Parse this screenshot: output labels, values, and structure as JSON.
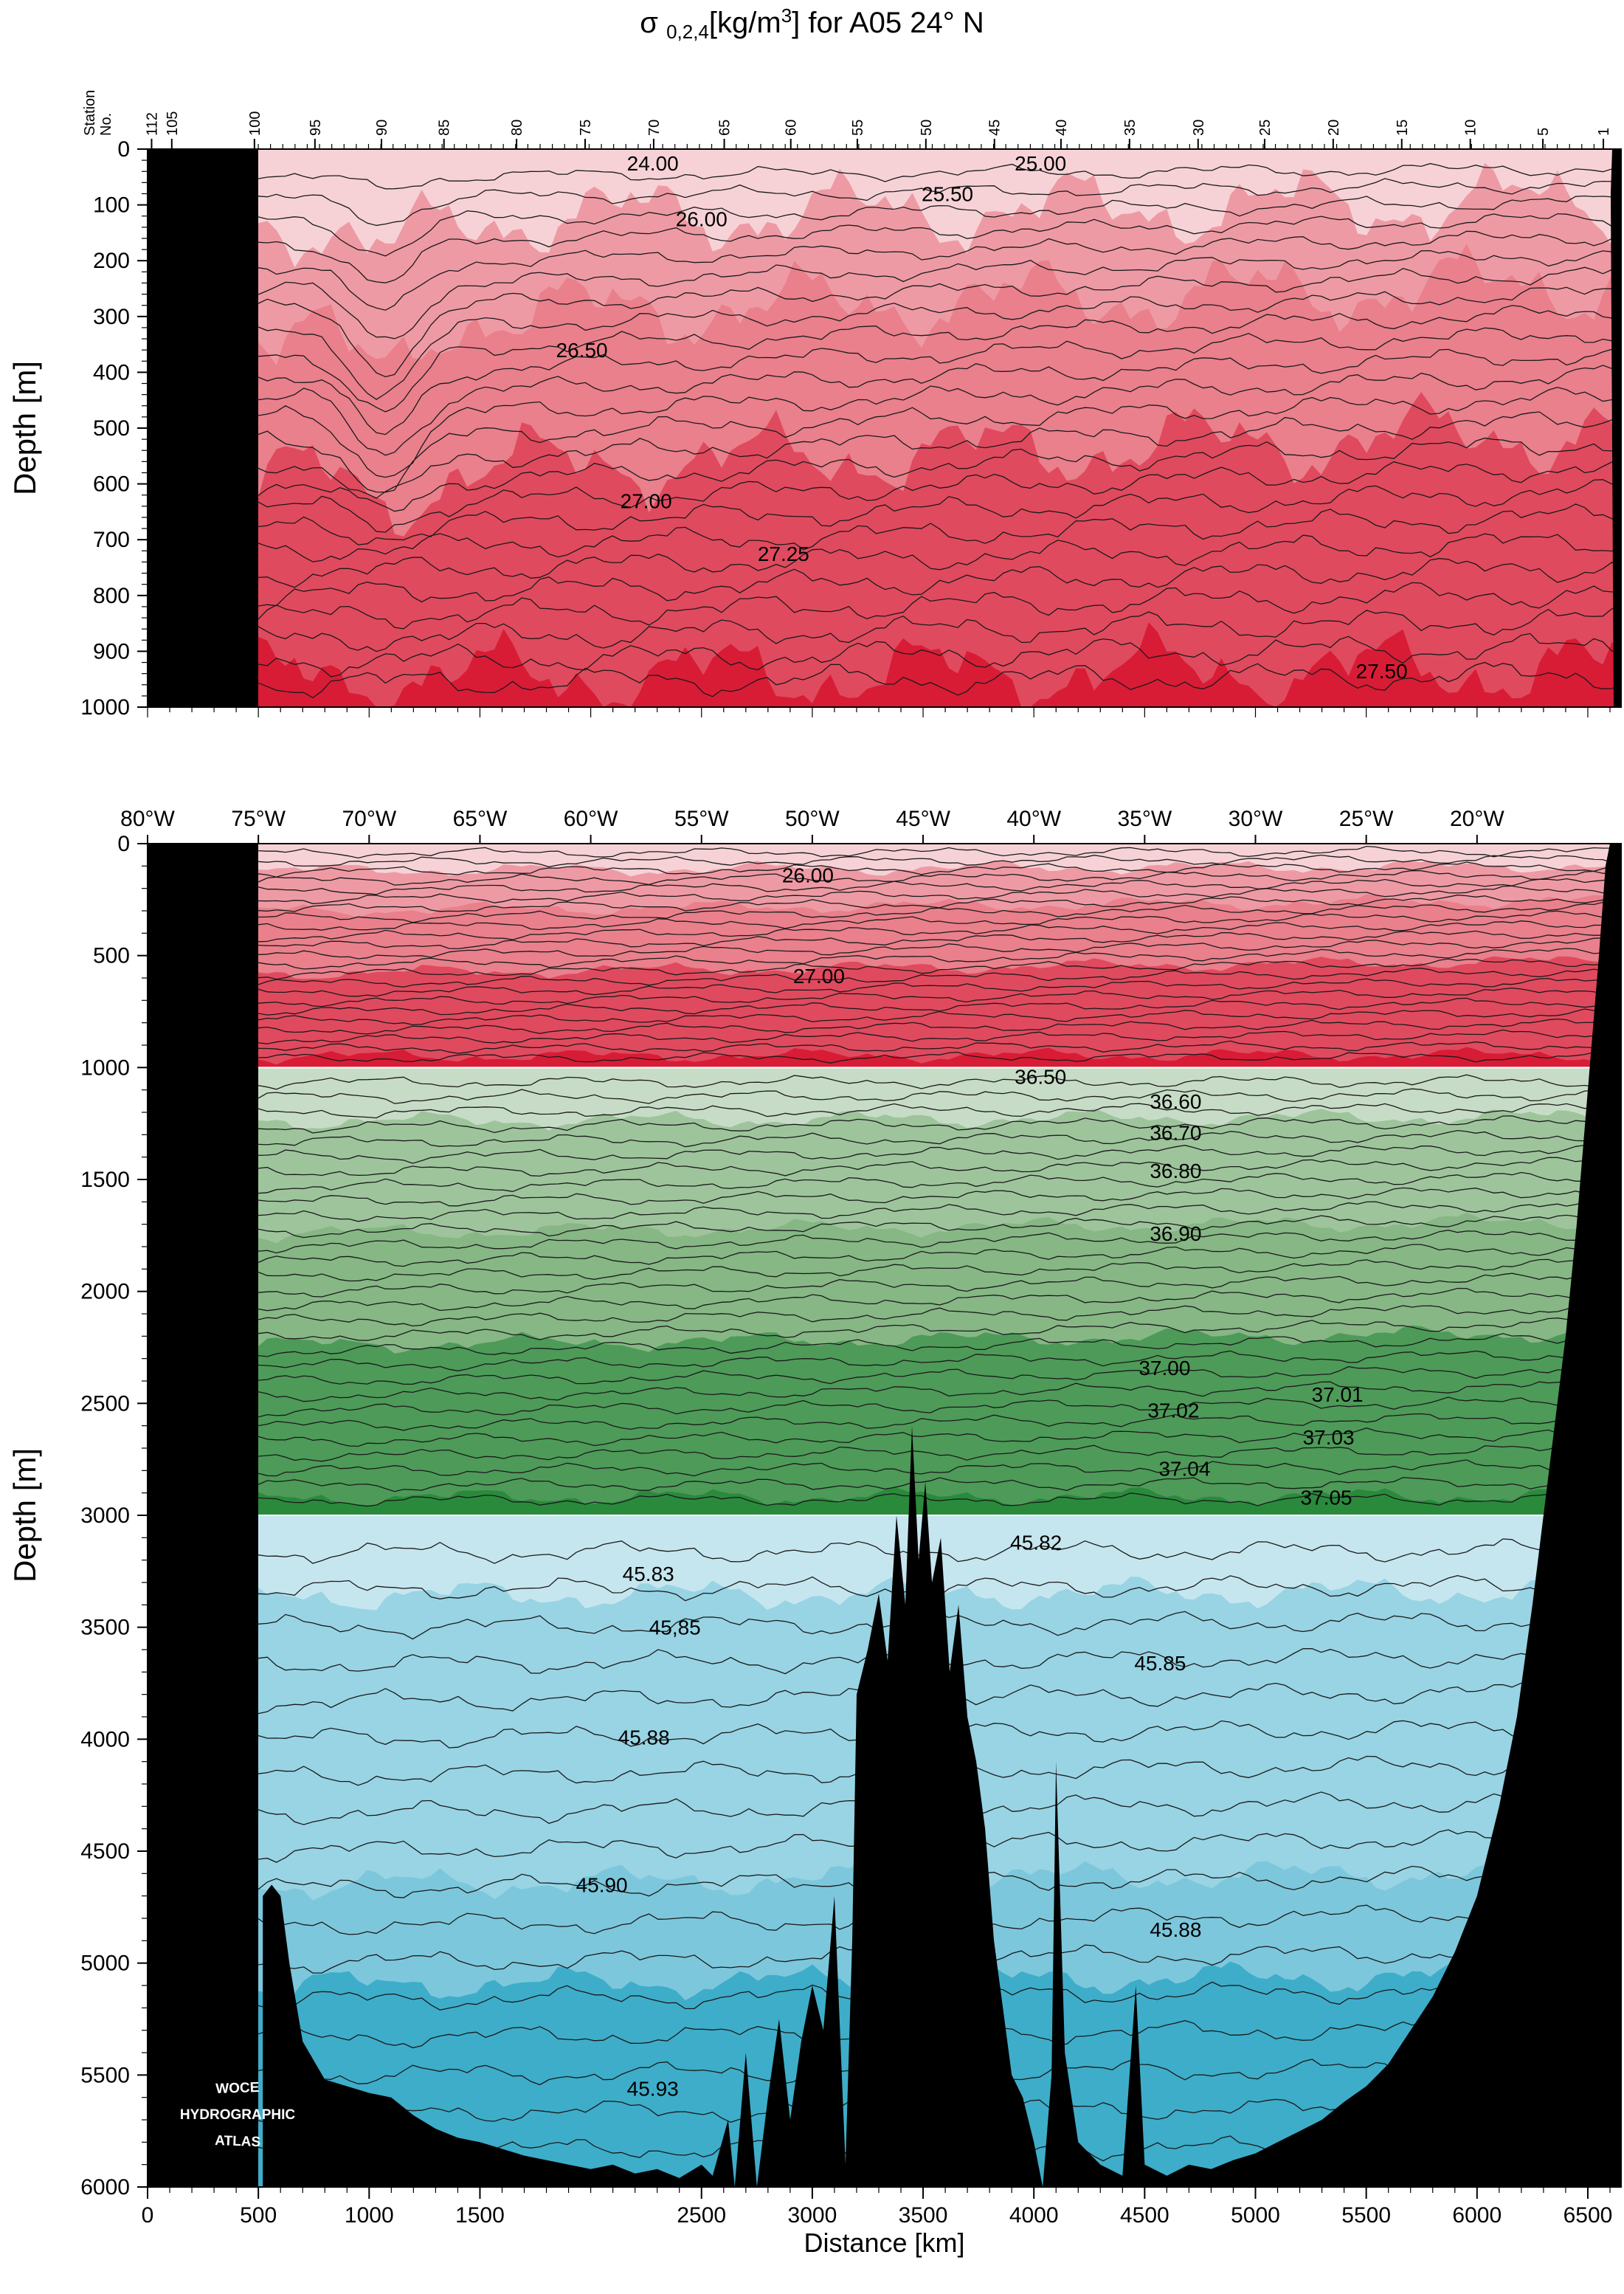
{
  "title": {
    "symbol": "σ",
    "subscript": "0,2,4",
    "units_pre": "[kg/m",
    "units_exp": "3",
    "units_post": "] for A05 24° N"
  },
  "logo": [
    "WOCE",
    "HYDROGRAPHIC",
    "ATLAS"
  ],
  "colors": {
    "sigma0": [
      "#f6d2d6",
      "#ee9aa4",
      "#e9808c",
      "#e04a5e",
      "#d81c36"
    ],
    "sigma2": [
      "#c7dcc6",
      "#9ec49c",
      "#86b785",
      "#4e9a59",
      "#2a8a3c"
    ],
    "sigma4": [
      "#c6e6ef",
      "#98d4e4",
      "#7dc7dc",
      "#3eadc9"
    ],
    "land": "#000000"
  },
  "chart_data": [
    {
      "type": "contour-section",
      "name": "upper",
      "ylabel": "Depth [m]",
      "ylim": [
        1000,
        0
      ],
      "yticks": [
        0,
        100,
        200,
        300,
        400,
        500,
        600,
        700,
        800,
        900,
        1000
      ],
      "station_label": [
        "Station",
        "No."
      ],
      "station_ticks": [
        {
          "label": "112",
          "km": 20
        },
        {
          "label": "105",
          "km": 120
        },
        {
          "label": "100",
          "km": 530
        },
        {
          "label": "95",
          "km": 830
        },
        {
          "label": "90",
          "km": 1160
        },
        {
          "label": "85",
          "km": 1470
        },
        {
          "label": "80",
          "km": 1830
        },
        {
          "label": "75",
          "km": 2170
        },
        {
          "label": "70",
          "km": 2510
        },
        {
          "label": "65",
          "km": 2860
        },
        {
          "label": "60",
          "km": 3190
        },
        {
          "label": "55",
          "km": 3520
        },
        {
          "label": "50",
          "km": 3860
        },
        {
          "label": "45",
          "km": 4200
        },
        {
          "label": "40",
          "km": 4530
        },
        {
          "label": "35",
          "km": 4870
        },
        {
          "label": "30",
          "km": 5210
        },
        {
          "label": "25",
          "km": 5540
        },
        {
          "label": "20",
          "km": 5880
        },
        {
          "label": "15",
          "km": 6220
        },
        {
          "label": "10",
          "km": 6560
        },
        {
          "label": "5",
          "km": 6920
        },
        {
          "label": "1",
          "km": 7220
        }
      ],
      "contour_labels": [
        {
          "text": "24.00",
          "km": 2280,
          "depth": 25
        },
        {
          "text": "25.00",
          "km": 4030,
          "depth": 25
        },
        {
          "text": "25.50",
          "km": 3610,
          "depth": 80
        },
        {
          "text": "26.00",
          "km": 2500,
          "depth": 125
        },
        {
          "text": "26.50",
          "km": 1960,
          "depth": 360
        },
        {
          "text": "27.00",
          "km": 2250,
          "depth": 630
        },
        {
          "text": "27.25",
          "km": 2870,
          "depth": 725
        },
        {
          "text": "27.50",
          "km": 5570,
          "depth": 935
        }
      ]
    },
    {
      "type": "contour-section",
      "name": "lower",
      "xlabel": "Distance [km]",
      "ylabel": "Depth [m]",
      "xlim": [
        0,
        6650
      ],
      "ylim": [
        6000,
        0
      ],
      "xticks": [
        0,
        500,
        1000,
        1500,
        2500,
        3000,
        3500,
        4000,
        4500,
        5000,
        5500,
        6000,
        6500
      ],
      "yticks": [
        0,
        500,
        1000,
        1500,
        2000,
        2500,
        3000,
        3500,
        4000,
        4500,
        5000,
        5500,
        6000
      ],
      "lon_ticks": [
        {
          "label": "80°W",
          "km": 0
        },
        {
          "label": "75°W",
          "km": 500
        },
        {
          "label": "70°W",
          "km": 1000
        },
        {
          "label": "65°W",
          "km": 1500
        },
        {
          "label": "60°W",
          "km": 2000
        },
        {
          "label": "55°W",
          "km": 2500
        },
        {
          "label": "50°W",
          "km": 3000
        },
        {
          "label": "45°W",
          "km": 3500
        },
        {
          "label": "40°W",
          "km": 4000
        },
        {
          "label": "35°W",
          "km": 4500
        },
        {
          "label": "30°W",
          "km": 5000
        },
        {
          "label": "25°W",
          "km": 5500
        },
        {
          "label": "20°W",
          "km": 6000
        }
      ],
      "contour_labels": [
        {
          "text": "26.00",
          "km": 2980,
          "depth": 140
        },
        {
          "text": "27.00",
          "km": 3030,
          "depth": 590
        },
        {
          "text": "36.50",
          "km": 4030,
          "depth": 1040
        },
        {
          "text": "36.60",
          "km": 4640,
          "depth": 1150
        },
        {
          "text": "36.70",
          "km": 4640,
          "depth": 1290
        },
        {
          "text": "36.80",
          "km": 4640,
          "depth": 1460
        },
        {
          "text": "36.90",
          "km": 4640,
          "depth": 1740
        },
        {
          "text": "37.00",
          "km": 4590,
          "depth": 2340
        },
        {
          "text": "37.01",
          "km": 5370,
          "depth": 2460
        },
        {
          "text": "37.02",
          "km": 4630,
          "depth": 2530
        },
        {
          "text": "37.03",
          "km": 5330,
          "depth": 2650
        },
        {
          "text": "37.04",
          "km": 4680,
          "depth": 2790
        },
        {
          "text": "37.05",
          "km": 5320,
          "depth": 2920
        },
        {
          "text": "45.83",
          "km": 2260,
          "depth": 3260
        },
        {
          "text": "45.82",
          "km": 4010,
          "depth": 3120
        },
        {
          "text": "45,85",
          "km": 2380,
          "depth": 3500
        },
        {
          "text": "45.85",
          "km": 4570,
          "depth": 3660
        },
        {
          "text": "45.88",
          "km": 2240,
          "depth": 3990
        },
        {
          "text": "45.90",
          "km": 2050,
          "depth": 4650
        },
        {
          "text": "45.88",
          "km": 4640,
          "depth": 4850
        },
        {
          "text": "45.93",
          "km": 2280,
          "depth": 5560
        }
      ]
    }
  ]
}
